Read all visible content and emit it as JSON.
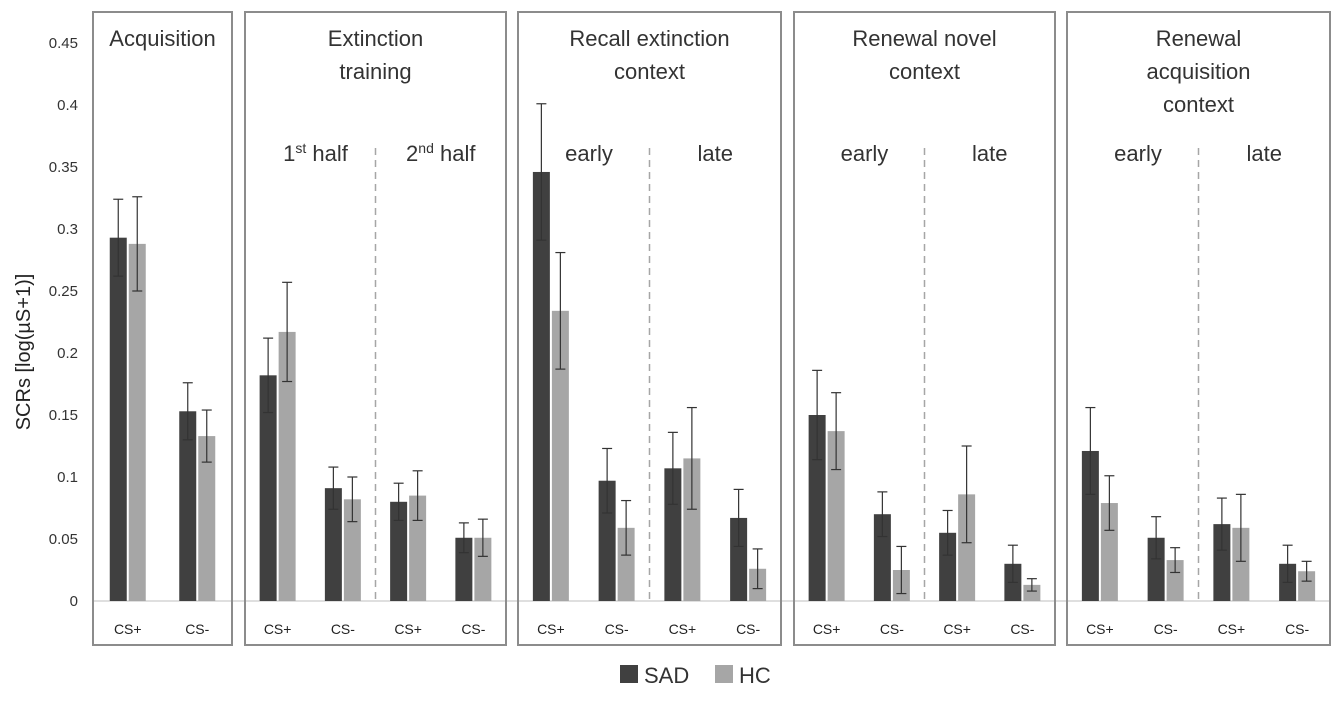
{
  "chart_data": {
    "type": "bar",
    "ylabel": "SCRs [log(µS+1)]",
    "ylim": [
      0,
      0.45
    ],
    "yticks": [
      "0",
      "0.05",
      "0.1",
      "0.15",
      "0.2",
      "0.25",
      "0.3",
      "0.35",
      "0.4",
      "0.45"
    ],
    "legend": {
      "position": "bottom",
      "entries": [
        {
          "name": "SAD",
          "color": "#404040"
        },
        {
          "name": "HC",
          "color": "#a6a6a6"
        }
      ]
    },
    "panels": [
      {
        "title": [
          "Acquisition"
        ],
        "subsections": [],
        "categories": [
          "CS+",
          "CS-"
        ],
        "series": [
          {
            "name": "SAD",
            "values": [
              0.293,
              0.153
            ],
            "errors": [
              0.031,
              0.023
            ]
          },
          {
            "name": "HC",
            "values": [
              0.288,
              0.133
            ],
            "errors": [
              0.038,
              0.021
            ]
          }
        ]
      },
      {
        "title": [
          "Extinction",
          "training"
        ],
        "subsections": [
          {
            "main": "1",
            "sup": "st",
            "rest": " half"
          },
          {
            "main": "2",
            "sup": "nd",
            "rest": " half"
          }
        ],
        "categories": [
          "CS+",
          "CS-",
          "CS+",
          "CS-"
        ],
        "series": [
          {
            "name": "SAD",
            "values": [
              0.182,
              0.091,
              0.08,
              0.051
            ],
            "errors": [
              0.03,
              0.017,
              0.015,
              0.012
            ]
          },
          {
            "name": "HC",
            "values": [
              0.217,
              0.082,
              0.085,
              0.051
            ],
            "errors": [
              0.04,
              0.018,
              0.02,
              0.015
            ]
          }
        ]
      },
      {
        "title": [
          "Recall extinction",
          "context"
        ],
        "subsections": [
          {
            "main": "early",
            "sup": "",
            "rest": ""
          },
          {
            "main": "late",
            "sup": "",
            "rest": ""
          }
        ],
        "categories": [
          "CS+",
          "CS-",
          "CS+",
          "CS-"
        ],
        "series": [
          {
            "name": "SAD",
            "values": [
              0.346,
              0.097,
              0.107,
              0.067
            ],
            "errors": [
              0.055,
              0.026,
              0.029,
              0.023
            ]
          },
          {
            "name": "HC",
            "values": [
              0.234,
              0.059,
              0.115,
              0.026
            ],
            "errors": [
              0.047,
              0.022,
              0.041,
              0.016
            ]
          }
        ]
      },
      {
        "title": [
          "Renewal novel",
          "context"
        ],
        "subsections": [
          {
            "main": "early",
            "sup": "",
            "rest": ""
          },
          {
            "main": "late",
            "sup": "",
            "rest": ""
          }
        ],
        "categories": [
          "CS+",
          "CS-",
          "CS+",
          "CS-"
        ],
        "series": [
          {
            "name": "SAD",
            "values": [
              0.15,
              0.07,
              0.055,
              0.03
            ],
            "errors": [
              0.036,
              0.018,
              0.018,
              0.015
            ]
          },
          {
            "name": "HC",
            "values": [
              0.137,
              0.025,
              0.086,
              0.013
            ],
            "errors": [
              0.031,
              0.019,
              0.039,
              0.005
            ]
          }
        ]
      },
      {
        "title": [
          "Renewal",
          "acquisition",
          "context"
        ],
        "subsections": [
          {
            "main": "early",
            "sup": "",
            "rest": ""
          },
          {
            "main": "late",
            "sup": "",
            "rest": ""
          }
        ],
        "categories": [
          "CS+",
          "CS-",
          "CS+",
          "CS-"
        ],
        "series": [
          {
            "name": "SAD",
            "values": [
              0.121,
              0.051,
              0.062,
              0.03
            ],
            "errors": [
              0.035,
              0.017,
              0.021,
              0.015
            ]
          },
          {
            "name": "HC",
            "values": [
              0.079,
              0.033,
              0.059,
              0.024
            ],
            "errors": [
              0.022,
              0.01,
              0.027,
              0.008
            ]
          }
        ]
      }
    ]
  }
}
